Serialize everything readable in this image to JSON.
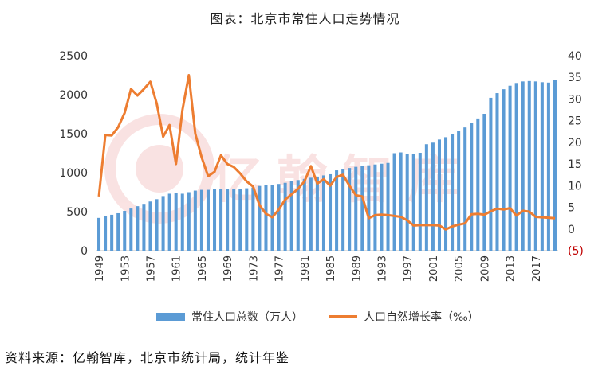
{
  "chart_data": {
    "type": "bar+line",
    "title": "图表：北京市常住人口走势情况",
    "x": [
      1949,
      1950,
      1951,
      1952,
      1953,
      1954,
      1955,
      1956,
      1957,
      1958,
      1959,
      1960,
      1961,
      1962,
      1963,
      1964,
      1965,
      1966,
      1967,
      1968,
      1969,
      1970,
      1971,
      1972,
      1973,
      1974,
      1975,
      1976,
      1977,
      1978,
      1979,
      1980,
      1981,
      1982,
      1983,
      1984,
      1985,
      1986,
      1987,
      1988,
      1989,
      1990,
      1991,
      1992,
      1993,
      1994,
      1995,
      1996,
      1997,
      1998,
      1999,
      2000,
      2001,
      2002,
      2003,
      2004,
      2005,
      2006,
      2007,
      2008,
      2009,
      2010,
      2011,
      2012,
      2013,
      2014,
      2015,
      2016,
      2017,
      2018,
      2019,
      2020
    ],
    "x_tick_labels": [
      "1949",
      "1953",
      "1957",
      "1961",
      "1965",
      "1969",
      "1973",
      "1977",
      "1981",
      "1985",
      "1989",
      "1993",
      "1997",
      "2001",
      "2005",
      "2009",
      "2013",
      "2017"
    ],
    "series": [
      {
        "name": "常住人口总数（万人）",
        "type": "bar",
        "axis": "left",
        "color": "#5b9bd5",
        "values": [
          420,
          440,
          460,
          480,
          510,
          540,
          570,
          600,
          630,
          660,
          700,
          730,
          740,
          730,
          750,
          770,
          780,
          780,
          790,
          795,
          795,
          790,
          795,
          800,
          810,
          830,
          840,
          845,
          855,
          870,
          890,
          905,
          920,
          935,
          950,
          965,
          980,
          1030,
          1050,
          1060,
          1075,
          1085,
          1095,
          1105,
          1115,
          1125,
          1250,
          1260,
          1240,
          1245,
          1255,
          1365,
          1385,
          1425,
          1455,
          1495,
          1540,
          1580,
          1635,
          1695,
          1755,
          1960,
          2020,
          2070,
          2115,
          2150,
          2170,
          2175,
          2170,
          2160,
          2155,
          2190
        ]
      },
      {
        "name": "人口自然增长率（‰）",
        "type": "line",
        "axis": "right",
        "color": "#ed7d31",
        "values": [
          7.5,
          21.7,
          21.6,
          23.5,
          26.8,
          32.3,
          30.8,
          32.3,
          34.0,
          29.0,
          21.3,
          24.0,
          15.0,
          27.5,
          35.5,
          22.0,
          16.5,
          12.2,
          13.2,
          17.0,
          15.0,
          14.3,
          12.8,
          11.0,
          9.8,
          5.5,
          3.5,
          2.7,
          4.5,
          6.8,
          8.0,
          9.3,
          11.0,
          14.5,
          10.5,
          11.5,
          10.0,
          12.0,
          12.5,
          10.0,
          7.8,
          7.5,
          2.5,
          3.2,
          3.3,
          3.2,
          3.0,
          2.8,
          2.0,
          0.8,
          0.9,
          0.9,
          0.9,
          0.8,
          -0.1,
          0.6,
          1.0,
          1.3,
          3.4,
          3.5,
          3.3,
          4.1,
          4.7,
          4.5,
          4.8,
          3.1,
          4.2,
          4.0,
          2.8,
          2.7,
          2.6,
          2.5
        ]
      }
    ],
    "y_left": {
      "ylim": [
        0,
        2500
      ],
      "ticks": [
        "0",
        "500",
        "1000",
        "1500",
        "2000",
        "2500"
      ]
    },
    "y_right": {
      "ylim": [
        -5,
        40
      ],
      "ticks": [
        "(5)",
        "0",
        "5",
        "10",
        "15",
        "20",
        "25",
        "30",
        "35",
        "40"
      ],
      "negative_tick_color": "#c00000"
    },
    "grid": false,
    "legend": "bottom"
  },
  "legend": {
    "bar_label": "常住人口总数（万人）",
    "line_label": "人口自然增长率（‰）"
  },
  "source": "资料来源：亿翰智库，北京市统计局，统计年鉴",
  "watermark": "亿翰智库"
}
